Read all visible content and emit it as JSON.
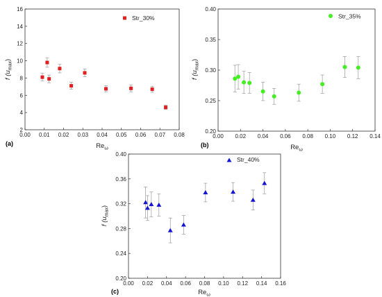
{
  "chart_data": [
    {
      "panel_label": "(a)",
      "type": "scatter",
      "xlabel": "Re",
      "xlabel_sub": "ω",
      "ylabel": "f (u",
      "ylabel_sub": "max",
      "ylabel_close": ")",
      "xlim": [
        0,
        0.08
      ],
      "ylim": [
        2,
        16
      ],
      "xticks": [
        "0.00",
        "0.01",
        "0.02",
        "0.03",
        "0.04",
        "0.05",
        "0.06",
        "0.07",
        "0.08"
      ],
      "yticks": [
        "2",
        "4",
        "6",
        "8",
        "10",
        "12",
        "14",
        "16"
      ],
      "legend_position": "top-right",
      "series": [
        {
          "name": "Str_30%",
          "marker": "square",
          "color": "#e02020",
          "x": [
            0.009,
            0.0115,
            0.0125,
            0.018,
            0.024,
            0.031,
            0.042,
            0.055,
            0.066,
            0.073
          ],
          "y": [
            8.1,
            9.8,
            7.9,
            9.1,
            7.1,
            8.6,
            6.75,
            6.8,
            6.7,
            4.6
          ],
          "err": [
            0.45,
            0.55,
            0.45,
            0.5,
            0.4,
            0.45,
            0.35,
            0.4,
            0.35,
            0.25
          ]
        }
      ]
    },
    {
      "panel_label": "(b)",
      "type": "scatter",
      "xlabel": "Re",
      "xlabel_sub": "ω",
      "ylabel": "f (u",
      "ylabel_sub": "max",
      "ylabel_close": ")",
      "xlim": [
        0,
        0.14
      ],
      "ylim": [
        0.2,
        0.4
      ],
      "xticks": [
        "0.00",
        "0.02",
        "0.04",
        "0.06",
        "0.08",
        "0.10",
        "0.12",
        "0.14"
      ],
      "yticks": [
        "0.20",
        "0.25",
        "0.30",
        "0.35",
        "0.40"
      ],
      "legend_position": "top-right",
      "series": [
        {
          "name": "Str_35%",
          "marker": "circle",
          "color": "#44ee22",
          "x": [
            0.015,
            0.018,
            0.023,
            0.028,
            0.04,
            0.05,
            0.072,
            0.093,
            0.113,
            0.125
          ],
          "y": [
            0.286,
            0.289,
            0.28,
            0.279,
            0.265,
            0.257,
            0.263,
            0.277,
            0.305,
            0.304
          ],
          "err": [
            0.022,
            0.02,
            0.018,
            0.017,
            0.015,
            0.013,
            0.014,
            0.015,
            0.017,
            0.018
          ]
        }
      ]
    },
    {
      "panel_label": "(c)",
      "type": "scatter",
      "xlabel": "Re",
      "xlabel_sub": "ω",
      "ylabel": "f (u",
      "ylabel_sub": "max",
      "ylabel_close": ")",
      "xlim": [
        0,
        0.16
      ],
      "ylim": [
        0.2,
        0.4
      ],
      "xticks": [
        "0.00",
        "0.02",
        "0.04",
        "0.06",
        "0.08",
        "0.10",
        "0.12",
        "0.14",
        "0.16"
      ],
      "yticks": [
        "0.20",
        "0.24",
        "0.28",
        "0.32",
        "0.36",
        "0.40"
      ],
      "legend_position": "top-right",
      "series": [
        {
          "name": "Str_40%",
          "marker": "triangle",
          "color": "#1515d0",
          "x": [
            0.018,
            0.02,
            0.024,
            0.032,
            0.044,
            0.058,
            0.081,
            0.11,
            0.131,
            0.143
          ],
          "y": [
            0.322,
            0.313,
            0.319,
            0.318,
            0.277,
            0.286,
            0.338,
            0.339,
            0.326,
            0.353
          ],
          "err": [
            0.025,
            0.02,
            0.02,
            0.018,
            0.02,
            0.015,
            0.015,
            0.015,
            0.016,
            0.017
          ]
        }
      ]
    }
  ]
}
